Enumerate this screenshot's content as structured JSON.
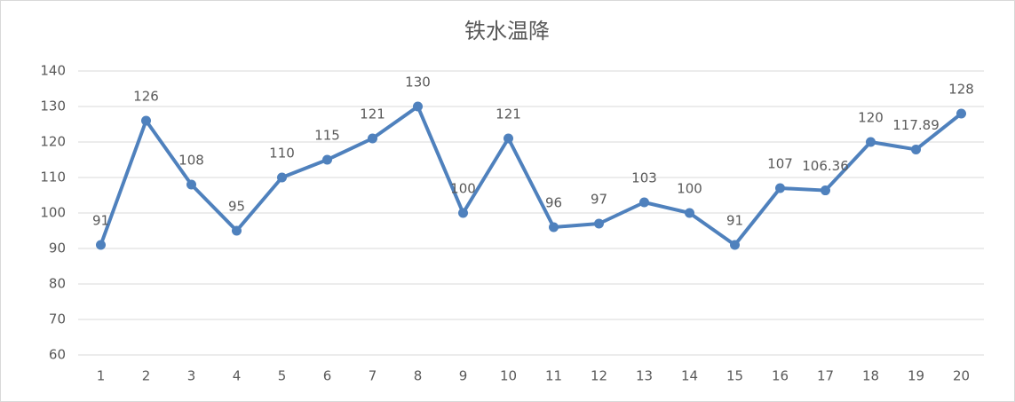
{
  "chart_data": {
    "type": "line",
    "title": "铁水温降",
    "categories": [
      "1",
      "2",
      "3",
      "4",
      "5",
      "6",
      "7",
      "8",
      "9",
      "10",
      "11",
      "12",
      "13",
      "14",
      "15",
      "16",
      "17",
      "18",
      "19",
      "20"
    ],
    "values": [
      91,
      126,
      108,
      95,
      110,
      115,
      121,
      130,
      100,
      121,
      96,
      97,
      103,
      100,
      91,
      107,
      106.36,
      120,
      117.89,
      128
    ],
    "color": "#4f81bd",
    "ylim": [
      60,
      140
    ],
    "yticks": [
      60,
      70,
      80,
      90,
      100,
      110,
      120,
      130,
      140
    ],
    "grid": true
  }
}
